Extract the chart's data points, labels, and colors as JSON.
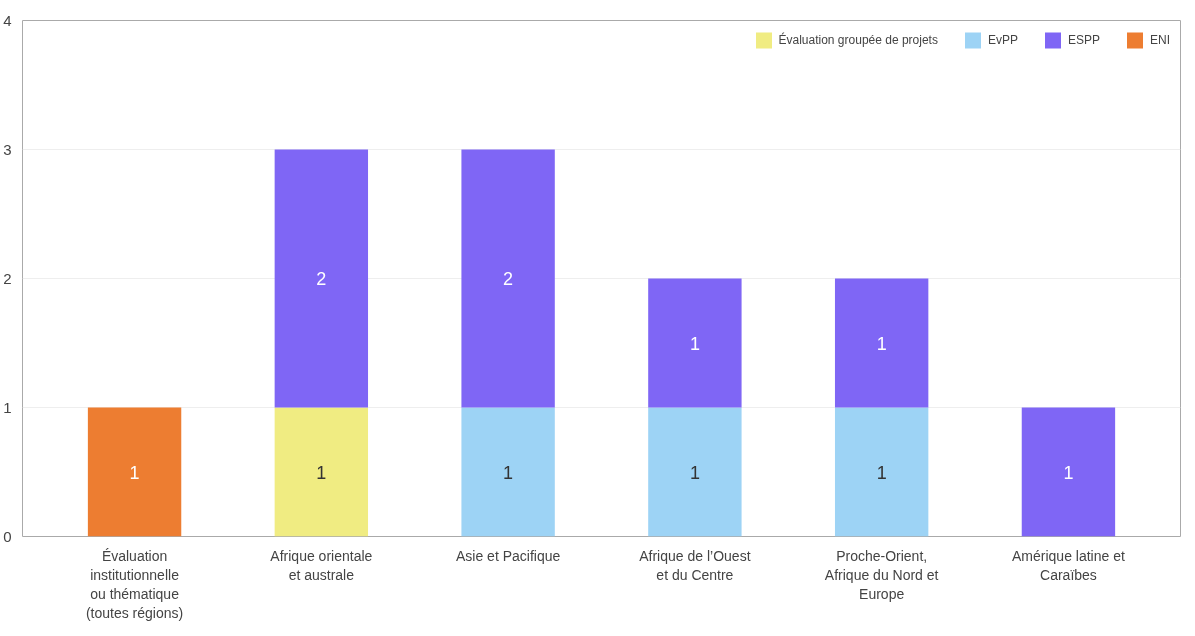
{
  "chart_data": {
    "type": "bar",
    "stacked": true,
    "categories": [
      "Évaluation institutionnelle ou thématique (toutes régions)",
      "Afrique orientale et australe",
      "Asie et Pacifique",
      "Afrique de l’Ouest et du Centre",
      "Proche-Orient, Afrique du Nord et Europe",
      "Amérique latine et Caraïbes"
    ],
    "series": [
      {
        "name": "Évaluation groupée de projets",
        "color": "#f0ec82",
        "values": [
          null,
          1,
          null,
          null,
          null,
          null
        ]
      },
      {
        "name": "EvPP",
        "color": "#9dd3f5",
        "values": [
          null,
          null,
          1,
          1,
          1,
          null
        ]
      },
      {
        "name": "ESPP",
        "color": "#7f66f5",
        "values": [
          null,
          2,
          2,
          1,
          1,
          1
        ]
      },
      {
        "name": "ENI",
        "color": "#ed7d31",
        "values": [
          1,
          null,
          null,
          null,
          null,
          null
        ]
      }
    ],
    "ylim": [
      0,
      4
    ],
    "yticks": [
      0,
      1,
      2,
      3,
      4
    ],
    "grid": "y",
    "legend": "top right",
    "data_labels": true
  }
}
